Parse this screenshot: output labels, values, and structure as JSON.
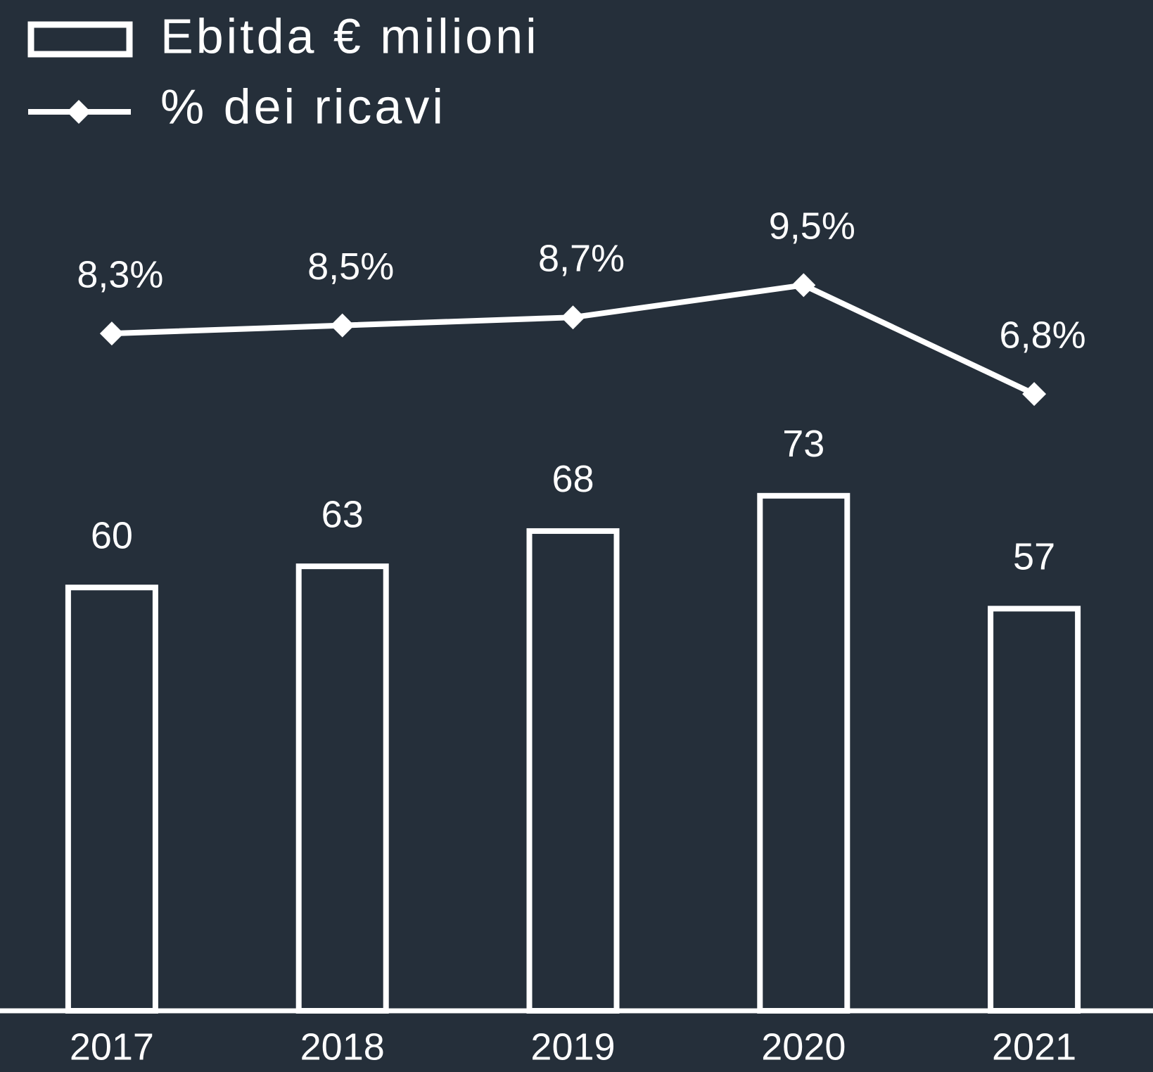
{
  "chart_data": {
    "type": "bar_line",
    "categories": [
      "2017",
      "2018",
      "2019",
      "2020",
      "2021"
    ],
    "series": [
      {
        "name": "Ebitda € milioni",
        "color": "#ffffff",
        "type": "bar",
        "values": [
          60,
          63,
          68,
          73,
          57
        ]
      },
      {
        "name": "% dei ricavi",
        "color": "#ffffff",
        "type": "line",
        "axis": "y2",
        "values": [
          8.3,
          8.5,
          8.7,
          9.5,
          6.8
        ],
        "value_labels": [
          "8,3%",
          "8,5%",
          "8,7%",
          "9,5%",
          "6,8%"
        ]
      }
    ],
    "ylim": [
      0,
      100
    ],
    "y2lim": [
      -8.5,
      9
    ],
    "background": "#252f3a"
  }
}
